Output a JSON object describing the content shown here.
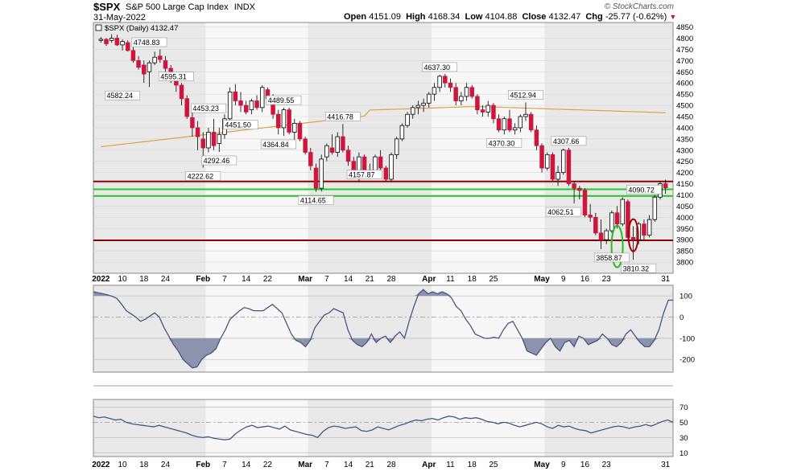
{
  "header": {
    "symbol": "$SPX",
    "name": "S&P 500 Large Cap Index",
    "exchange": "INDX",
    "date": "31-May-2022",
    "open_label": "Open",
    "open": "4151.09",
    "high_label": "High",
    "high": "4168.34",
    "low_label": "Low",
    "low": "4104.88",
    "close_label": "Close",
    "close": "4132.47",
    "chg_label": "Chg",
    "chg": "-25.77 (-0.62%)",
    "brand": "© StockCharts.com"
  },
  "chart_data": [
    {
      "type": "candlestick",
      "legend": "$SPX (Daily) 4132.47",
      "ylim": [
        3750,
        4870
      ],
      "yticks": [
        3800,
        3850,
        3900,
        3950,
        4000,
        4050,
        4100,
        4150,
        4200,
        4250,
        4300,
        4350,
        4400,
        4450,
        4500,
        4550,
        4600,
        4650,
        4700,
        4750,
        4800,
        4850
      ],
      "xticks": [
        "2022",
        "10",
        "18",
        "24",
        "Feb",
        "7",
        "14",
        "22",
        "Mar",
        "7",
        "14",
        "21",
        "28",
        "Apr",
        "11",
        "18",
        "25",
        "May",
        "9",
        "16",
        "23",
        "31"
      ],
      "grid": true,
      "moving_average_end": 4455,
      "horizontal_lines": [
        {
          "value": 4160,
          "color": "#8b0000"
        },
        {
          "value": 4125,
          "color": "#22cc22"
        },
        {
          "value": 4095,
          "color": "#22cc22"
        },
        {
          "value": 3897,
          "color": "#8b0000"
        }
      ],
      "annotations": [
        "4748.83",
        "4582.24",
        "4595.31",
        "4453.23",
        "4451.50",
        "4489.55",
        "4222.62",
        "4292.46",
        "4364.84",
        "4416.78",
        "4114.65",
        "4157.87",
        "4637.30",
        "4512.94",
        "4370.30",
        "4307.66",
        "4062.51",
        "4090.72",
        "3858.87",
        "3810.32"
      ],
      "ohlc": [
        [
          4790,
          4805,
          4780,
          4795
        ],
        [
          4795,
          4800,
          4765,
          4775
        ],
        [
          4790,
          4818,
          4780,
          4800
        ],
        [
          4800,
          4815,
          4765,
          4770
        ],
        [
          4770,
          4795,
          4745,
          4785
        ],
        [
          4780,
          4790,
          4740,
          4745
        ],
        [
          4745,
          4760,
          4690,
          4700
        ],
        [
          4700,
          4720,
          4660,
          4670
        ],
        [
          4680,
          4700,
          4600,
          4640
        ],
        [
          4650,
          4700,
          4582,
          4690
        ],
        [
          4690,
          4740,
          4680,
          4715
        ],
        [
          4720,
          4750,
          4690,
          4705
        ],
        [
          4700,
          4720,
          4650,
          4665
        ],
        [
          4665,
          4680,
          4600,
          4615
        ],
        [
          4615,
          4640,
          4560,
          4590
        ],
        [
          4590,
          4600,
          4500,
          4530
        ],
        [
          4530,
          4545,
          4440,
          4450
        ],
        [
          4445,
          4480,
          4360,
          4400
        ],
        [
          4400,
          4430,
          4300,
          4360
        ],
        [
          4350,
          4380,
          4222,
          4310
        ],
        [
          4310,
          4400,
          4290,
          4380
        ],
        [
          4380,
          4440,
          4300,
          4320
        ],
        [
          4330,
          4400,
          4292,
          4370
        ],
        [
          4370,
          4460,
          4350,
          4440
        ],
        [
          4440,
          4580,
          4430,
          4560
        ],
        [
          4560,
          4595,
          4500,
          4520
        ],
        [
          4520,
          4560,
          4470,
          4500
        ],
        [
          4500,
          4520,
          4460,
          4470
        ],
        [
          4480,
          4530,
          4460,
          4520
        ],
        [
          4520,
          4545,
          4480,
          4490
        ],
        [
          4490,
          4590,
          4470,
          4580
        ],
        [
          4570,
          4580,
          4520,
          4530
        ],
        [
          4530,
          4550,
          4440,
          4460
        ],
        [
          4460,
          4480,
          4370,
          4400
        ],
        [
          4400,
          4489,
          4364,
          4480
        ],
        [
          4480,
          4490,
          4370,
          4380
        ],
        [
          4380,
          4440,
          4330,
          4420
        ],
        [
          4420,
          4430,
          4340,
          4350
        ],
        [
          4350,
          4360,
          4280,
          4290
        ],
        [
          4290,
          4310,
          4210,
          4230
        ],
        [
          4220,
          4240,
          4114,
          4130
        ],
        [
          4130,
          4280,
          4115,
          4260
        ],
        [
          4270,
          4330,
          4250,
          4320
        ],
        [
          4310,
          4370,
          4280,
          4290
        ],
        [
          4290,
          4380,
          4270,
          4360
        ],
        [
          4360,
          4417,
          4290,
          4300
        ],
        [
          4300,
          4320,
          4230,
          4250
        ],
        [
          4250,
          4270,
          4170,
          4180
        ],
        [
          4180,
          4290,
          4157,
          4270
        ],
        [
          4270,
          4280,
          4200,
          4210
        ],
        [
          4210,
          4240,
          4170,
          4190
        ],
        [
          4190,
          4280,
          4170,
          4270
        ],
        [
          4270,
          4300,
          4200,
          4220
        ],
        [
          4220,
          4230,
          4160,
          4170
        ],
        [
          4170,
          4290,
          4157,
          4280
        ],
        [
          4280,
          4360,
          4260,
          4350
        ],
        [
          4350,
          4420,
          4340,
          4410
        ],
        [
          4410,
          4470,
          4400,
          4460
        ],
        [
          4460,
          4500,
          4440,
          4490
        ],
        [
          4490,
          4520,
          4460,
          4500
        ],
        [
          4500,
          4530,
          4470,
          4510
        ],
        [
          4510,
          4560,
          4490,
          4550
        ],
        [
          4550,
          4600,
          4520,
          4580
        ],
        [
          4580,
          4637,
          4560,
          4630
        ],
        [
          4630,
          4640,
          4580,
          4600
        ],
        [
          4600,
          4620,
          4560,
          4580
        ],
        [
          4580,
          4600,
          4500,
          4520
        ],
        [
          4520,
          4560,
          4500,
          4540
        ],
        [
          4540,
          4600,
          4520,
          4580
        ],
        [
          4580,
          4590,
          4530,
          4540
        ],
        [
          4540,
          4550,
          4460,
          4480
        ],
        [
          4480,
          4500,
          4450,
          4470
        ],
        [
          4470,
          4520,
          4450,
          4500
        ],
        [
          4500,
          4510,
          4420,
          4440
        ],
        [
          4440,
          4460,
          4380,
          4390
        ],
        [
          4390,
          4450,
          4370,
          4440
        ],
        [
          4440,
          4480,
          4380,
          4390
        ],
        [
          4390,
          4420,
          4370,
          4400
        ],
        [
          4400,
          4460,
          4380,
          4450
        ],
        [
          4450,
          4513,
          4430,
          4460
        ],
        [
          4460,
          4470,
          4380,
          4390
        ],
        [
          4390,
          4410,
          4300,
          4320
        ],
        [
          4320,
          4330,
          4200,
          4220
        ],
        [
          4220,
          4290,
          4210,
          4280
        ],
        [
          4280,
          4290,
          4160,
          4170
        ],
        [
          4170,
          4230,
          4140,
          4200
        ],
        [
          4200,
          4307,
          4190,
          4300
        ],
        [
          4300,
          4310,
          4140,
          4150
        ],
        [
          4150,
          4160,
          4062,
          4130
        ],
        [
          4130,
          4140,
          4080,
          4120
        ],
        [
          4120,
          4130,
          4000,
          4010
        ],
        [
          4010,
          4060,
          3980,
          4000
        ],
        [
          4000,
          4020,
          3920,
          3930
        ],
        [
          3930,
          3990,
          3858,
          3900
        ],
        [
          3900,
          3950,
          3880,
          3940
        ],
        [
          3940,
          4030,
          3930,
          4020
        ],
        [
          4020,
          4050,
          3950,
          3970
        ],
        [
          3970,
          4090,
          3960,
          4080
        ],
        [
          4070,
          4080,
          3900,
          3910
        ],
        [
          3910,
          3960,
          3810,
          3900
        ],
        [
          3900,
          3980,
          3880,
          3970
        ],
        [
          3970,
          3990,
          3900,
          3920
        ],
        [
          3920,
          4010,
          3910,
          3990
        ],
        [
          3990,
          4100,
          3980,
          4090
        ],
        [
          4090,
          4160,
          4080,
          4150
        ],
        [
          4150,
          4168,
          4105,
          4132
        ]
      ]
    },
    {
      "type": "line",
      "yticks": [
        100,
        0,
        -100,
        -200
      ],
      "ylim": [
        -260,
        150
      ],
      "fill_threshold_upper": 100,
      "fill_threshold_lower": -100,
      "values": [
        120,
        115,
        110,
        105,
        98,
        88,
        60,
        30,
        15,
        0,
        -20,
        -10,
        5,
        20,
        0,
        -50,
        -90,
        -130,
        -160,
        -200,
        -220,
        -240,
        -235,
        -200,
        -180,
        -170,
        -150,
        -100,
        -60,
        -10,
        10,
        30,
        45,
        40,
        30,
        30,
        30,
        45,
        60,
        40,
        20,
        -30,
        -80,
        -110,
        -120,
        -140,
        -110,
        -50,
        -20,
        10,
        20,
        40,
        30,
        20,
        -60,
        -110,
        -130,
        -140,
        -120,
        -80,
        -120,
        -100,
        -90,
        -120,
        -90,
        -70,
        -100,
        -20,
        50,
        110,
        130,
        110,
        120,
        110,
        120,
        110,
        90,
        50,
        30,
        -10,
        -40,
        -80,
        -90,
        -100,
        -100,
        -95,
        -100,
        -60,
        -30,
        -20,
        -60,
        -100,
        -160,
        -170,
        -180,
        -150,
        -120,
        -100,
        -140,
        -160,
        -120,
        -110,
        -140,
        -90,
        -100,
        -130,
        -120,
        -110,
        -80,
        -100,
        -130,
        -140,
        -120,
        -80,
        -60,
        -90,
        -120,
        -140,
        -140,
        -110,
        -60,
        20,
        80,
        80
      ]
    },
    {
      "type": "line",
      "yticks": [
        70,
        50,
        30,
        10
      ],
      "ylim": [
        5,
        80
      ],
      "values": [
        58,
        56,
        57,
        55,
        53,
        54,
        50,
        48,
        47,
        46,
        45,
        44,
        46,
        44,
        42,
        40,
        38,
        36,
        33,
        31,
        30,
        31,
        29,
        28,
        27,
        28,
        35,
        40,
        44,
        46,
        43,
        44,
        45,
        43,
        41,
        45,
        40,
        38,
        36,
        34,
        33,
        30,
        38,
        43,
        45,
        44,
        42,
        43,
        44,
        39,
        38,
        40,
        44,
        42,
        40,
        43,
        46,
        48,
        51,
        53,
        52,
        54,
        55,
        53,
        56,
        58,
        57,
        54,
        56,
        55,
        56,
        54,
        51,
        50,
        48,
        50,
        49,
        46,
        44,
        46,
        48,
        50,
        48,
        44,
        42,
        46,
        44,
        45,
        42,
        40,
        39,
        36,
        38,
        40,
        42,
        44,
        45,
        44,
        42,
        44,
        45,
        47,
        45,
        48,
        51,
        53,
        50
      ]
    }
  ]
}
